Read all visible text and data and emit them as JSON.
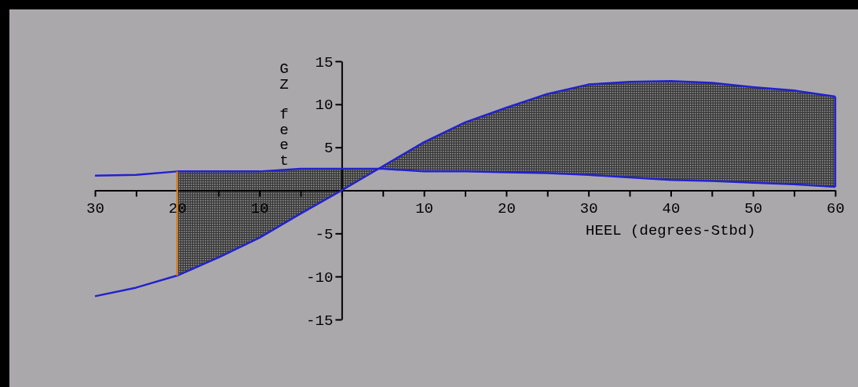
{
  "chart_data": {
    "type": "line",
    "xlabel": "HEEL (degrees-Stbd)",
    "ylabel": "GZ feet",
    "xlim": [
      -30,
      60
    ],
    "ylim": [
      -15,
      15
    ],
    "xticks": [
      {
        "value": -30,
        "label": "30"
      },
      {
        "value": -25,
        "label": null
      },
      {
        "value": -20,
        "label": "20"
      },
      {
        "value": -15,
        "label": null
      },
      {
        "value": -10,
        "label": "10"
      },
      {
        "value": -5,
        "label": null
      },
      {
        "value": 0,
        "label": null
      },
      {
        "value": 5,
        "label": null
      },
      10,
      {
        "value": 15,
        "label": null
      },
      20,
      {
        "value": 25,
        "label": null
      },
      30,
      {
        "value": 35,
        "label": null
      },
      40,
      {
        "value": 45,
        "label": null
      },
      50,
      {
        "value": 55,
        "label": null
      },
      60
    ],
    "yticks": [
      -15,
      -10,
      -5,
      {
        "value": 0,
        "label": null
      },
      5,
      10,
      15
    ],
    "marker": "none",
    "line_style": "solid",
    "series": [
      {
        "color": "#2222cc",
        "x": [
          -30,
          -25,
          -20,
          -15,
          -10,
          -5,
          0,
          5,
          10,
          15,
          20,
          25,
          30,
          35,
          40,
          45,
          50,
          55,
          60
        ],
        "values": [
          -12.3,
          -11.3,
          -9.9,
          -7.8,
          -5.5,
          -2.7,
          0,
          2.8,
          5.6,
          7.9,
          9.6,
          11.2,
          12.3,
          12.6,
          12.7,
          12.5,
          12.0,
          11.6,
          10.9
        ],
        "lower": [
          null,
          null,
          2.2,
          2.2,
          2.2,
          2.5,
          2.5,
          2.5,
          2.2,
          2.2,
          2.1,
          2.0,
          1.8,
          1.5,
          1.2,
          1.1,
          0.9,
          0.7,
          0.4
        ],
        "upper": [
          null,
          null,
          -9.9,
          -7.8,
          -5.5,
          -2.7,
          0,
          2.8,
          5.6,
          7.9,
          9.6,
          11.2,
          12.3,
          12.6,
          12.7,
          12.5,
          12.0,
          11.6,
          10.9
        ]
      },
      {
        "color": "#2222cc",
        "x": [
          -30,
          -25,
          -20,
          -15,
          -10,
          -5,
          0,
          5,
          10,
          15,
          20,
          25,
          30,
          35,
          40,
          45,
          50,
          55,
          60
        ],
        "values": [
          1.7,
          1.8,
          2.2,
          2.2,
          2.2,
          2.5,
          2.5,
          2.5,
          2.2,
          2.2,
          2.1,
          2.0,
          1.8,
          1.5,
          1.2,
          1.1,
          0.9,
          0.7,
          0.4
        ]
      }
    ],
    "ref_lines": [
      {
        "axis": "x",
        "value": -20,
        "color": "#d07a20"
      }
    ]
  }
}
